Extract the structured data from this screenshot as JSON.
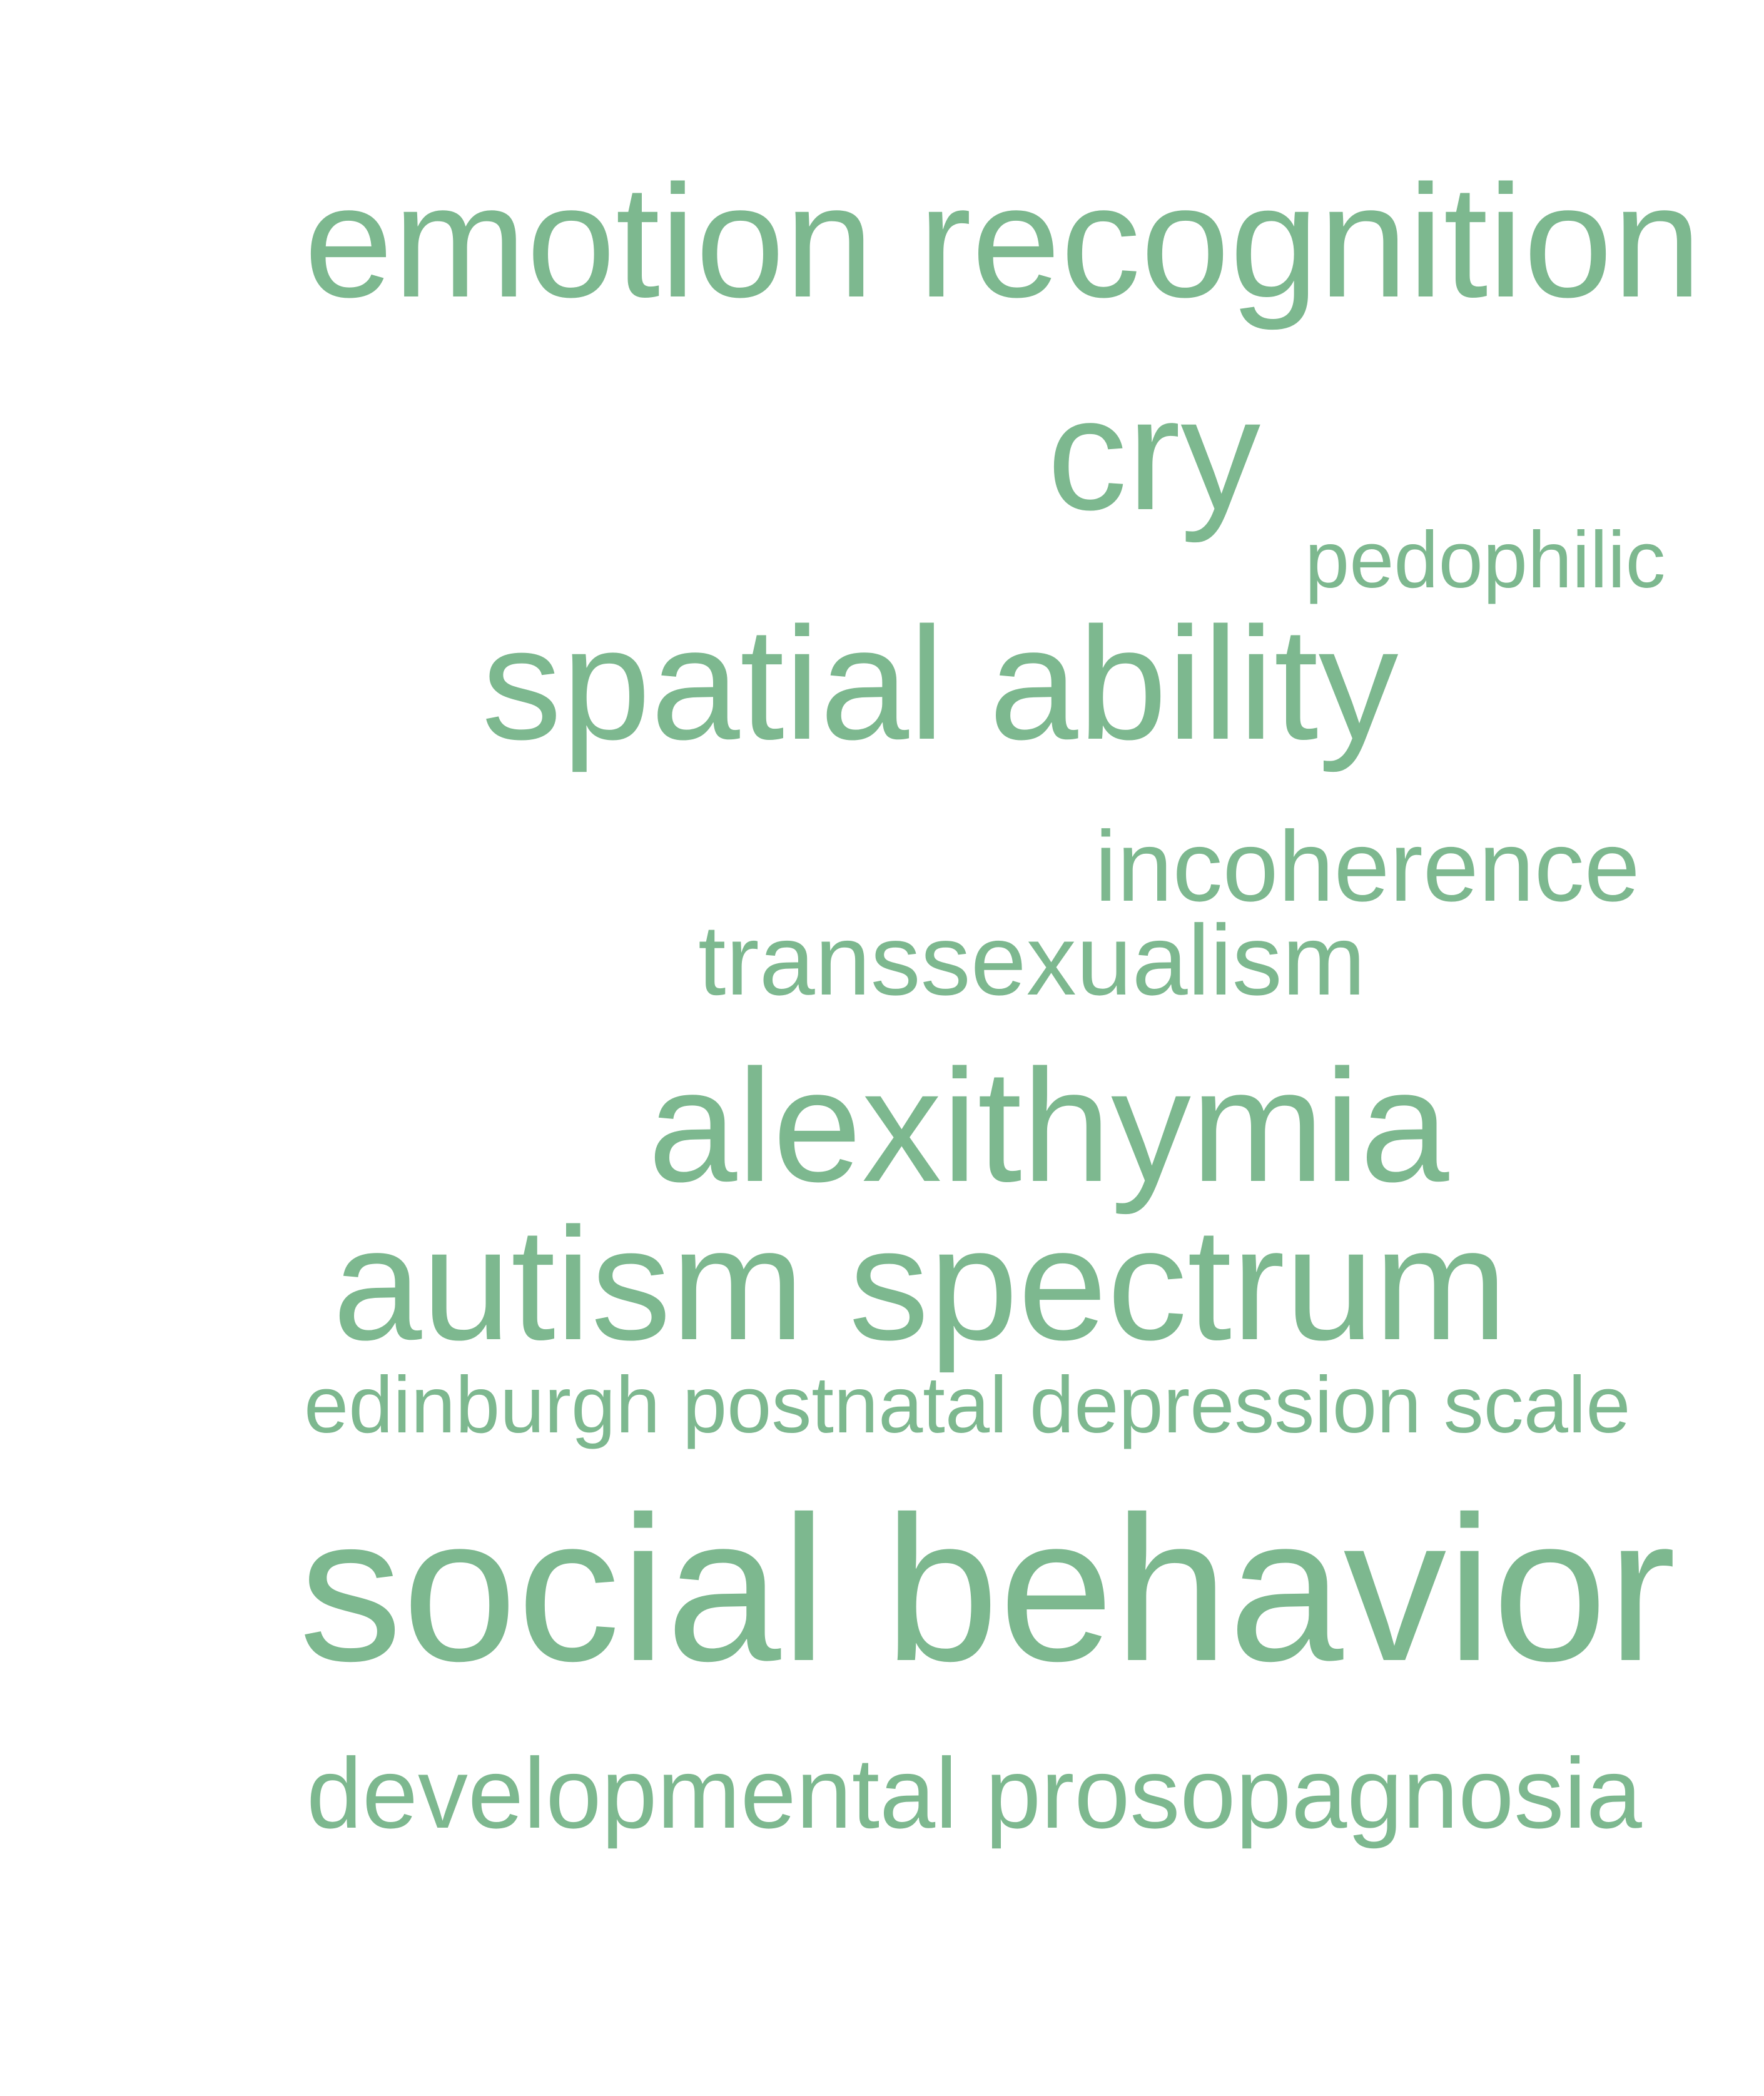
{
  "word_cloud": {
    "color": "#7db88f",
    "words": [
      {
        "text": "emotion recognition"
      },
      {
        "text": "cry"
      },
      {
        "text": "pedophilic"
      },
      {
        "text": "spatial ability"
      },
      {
        "text": "incoherence"
      },
      {
        "text": "transsexualism"
      },
      {
        "text": "alexithymia"
      },
      {
        "text": "autism spectrum"
      },
      {
        "text": "edinburgh postnatal depression scale"
      },
      {
        "text": "social behavior"
      },
      {
        "text": "developmental prosopagnosia"
      }
    ]
  }
}
